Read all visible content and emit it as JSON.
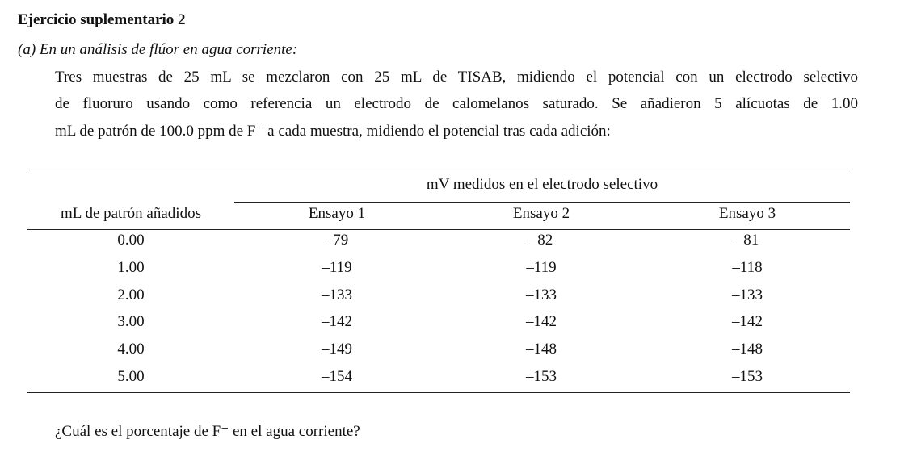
{
  "header": {
    "title": "Ejercicio suplementario 2",
    "subtitle": "(a) En un análisis de flúor en agua corriente:"
  },
  "paragraph": {
    "lines": [
      "Tres muestras de 25 mL se mezclaron con 25 mL de TISAB, midiendo el potencial con un electrodo selectivo",
      "de fluoruro usando como referencia un electrodo de calomelanos saturado. Se añadieron 5 alícuotas de 1.00",
      "mL de patrón de 100.0 ppm de F⁻ a cada muestra, midiendo el potencial tras cada adición:"
    ]
  },
  "table": {
    "group_header": "mV medidos en el electrodo selectivo",
    "columns": [
      "mL de patrón añadidos",
      "Ensayo 1",
      "Ensayo 2",
      "Ensayo 3"
    ],
    "rows": [
      [
        "0.00",
        "–79",
        "–82",
        "–81"
      ],
      [
        "1.00",
        "–119",
        "–119",
        "–118"
      ],
      [
        "2.00",
        "–133",
        "–133",
        "–133"
      ],
      [
        "3.00",
        "–142",
        "–142",
        "–142"
      ],
      [
        "4.00",
        "–149",
        "–148",
        "–148"
      ],
      [
        "5.00",
        "–154",
        "–153",
        "–153"
      ]
    ]
  },
  "question": "¿Cuál es el porcentaje de F⁻ en el agua corriente?"
}
